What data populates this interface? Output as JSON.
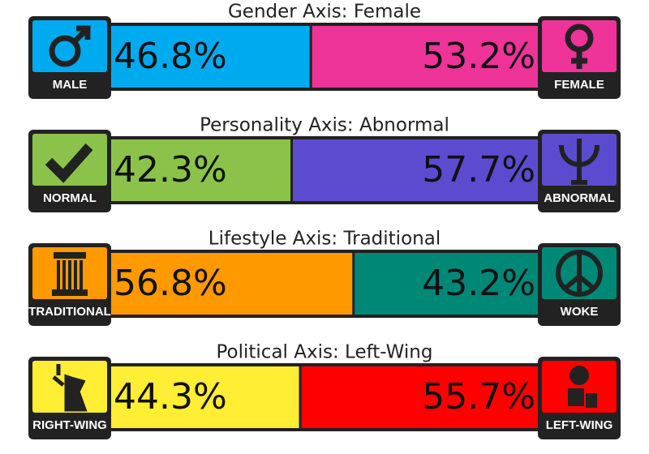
{
  "axes": [
    {
      "title": "Gender Axis: Female",
      "left": {
        "label": "MALE",
        "value": 46.8,
        "value_label": "46.8%",
        "color": "#00aaee"
      },
      "right": {
        "label": "FEMALE",
        "value": 53.2,
        "value_label": "53.2%",
        "color": "#ee3399"
      }
    },
    {
      "title": "Personality Axis: Abnormal",
      "left": {
        "label": "NORMAL",
        "value": 42.3,
        "value_label": "42.3%",
        "color": "#8bc34a"
      },
      "right": {
        "label": "ABNORMAL",
        "value": 57.7,
        "value_label": "57.7%",
        "color": "#5b4ccf"
      }
    },
    {
      "title": "Lifestyle Axis: Traditional",
      "left": {
        "label": "TRADITIONAL",
        "value": 56.8,
        "value_label": "56.8%",
        "color": "#ff9900"
      },
      "right": {
        "label": "WOKE",
        "value": 43.2,
        "value_label": "43.2%",
        "color": "#008877"
      }
    },
    {
      "title": "Political Axis: Left-Wing",
      "left": {
        "label": "RIGHT-WING",
        "value": 44.3,
        "value_label": "44.3%",
        "color": "#ffee33"
      },
      "right": {
        "label": "LEFT-WING",
        "value": 55.7,
        "value_label": "55.7%",
        "color": "#ff0000"
      }
    }
  ]
}
